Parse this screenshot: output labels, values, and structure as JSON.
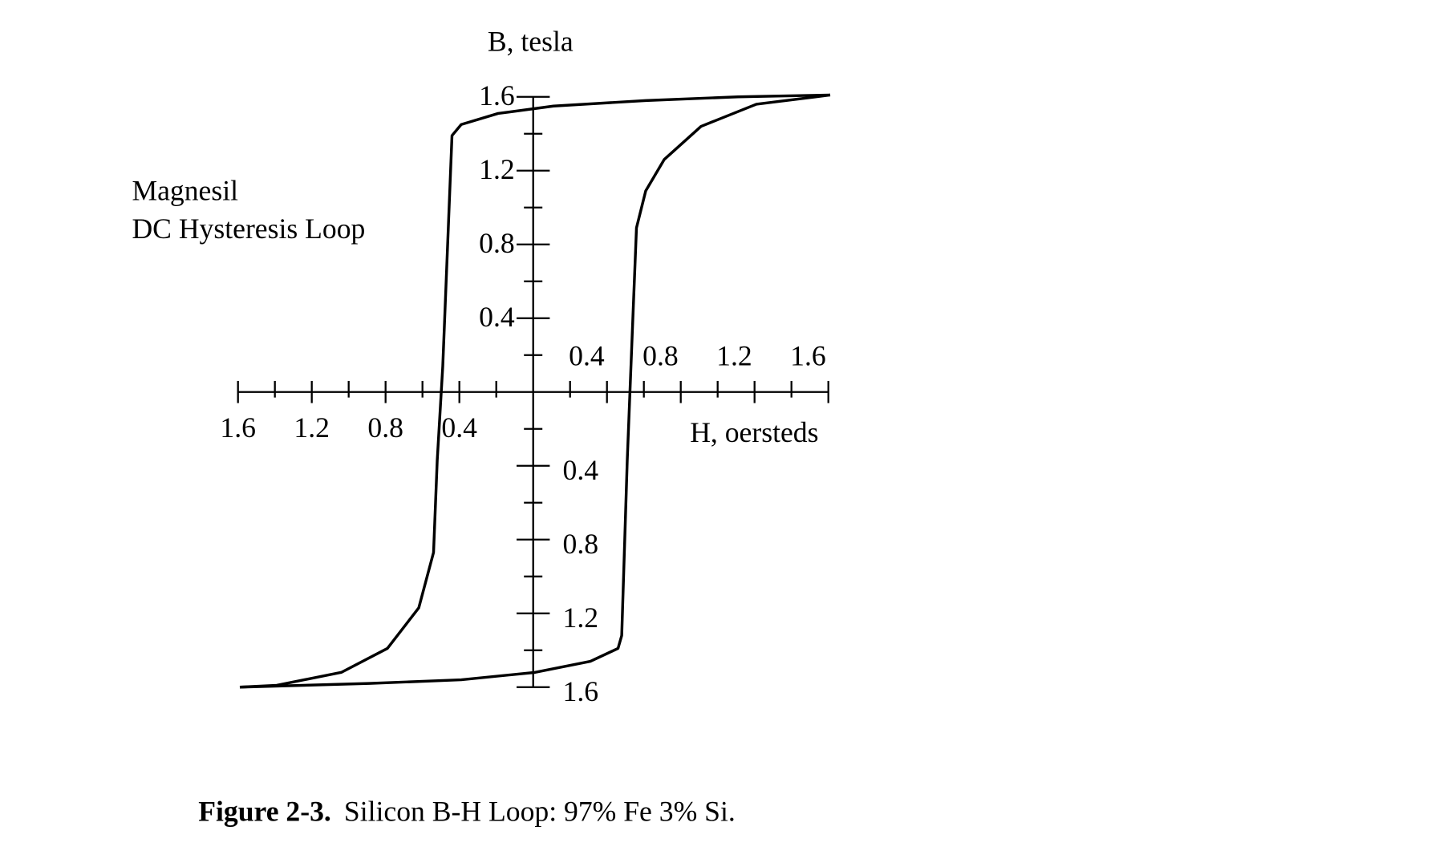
{
  "chart_data": {
    "type": "line",
    "ylabel": "B, tesla",
    "xlabel": "H, oersteds",
    "annotation": [
      "Magnesil",
      "DC Hysteresis Loop"
    ],
    "caption": {
      "label": "Figure 2-3.",
      "text": "Silicon B-H Loop: 97% Fe 3% Si."
    },
    "xlim": [
      -1.6,
      1.6
    ],
    "ylim": [
      -1.6,
      1.6
    ],
    "xticks": [
      {
        "value": -1.6,
        "label": "1.6"
      },
      {
        "value": -1.2,
        "label": "1.2"
      },
      {
        "value": -0.8,
        "label": "0.8"
      },
      {
        "value": -0.4,
        "label": "0.4"
      },
      0.4,
      0.8,
      1.2,
      1.6
    ],
    "yticks": [
      {
        "value": -1.6,
        "label": "1.6"
      },
      {
        "value": -1.2,
        "label": "1.2"
      },
      {
        "value": -0.8,
        "label": "0.8"
      },
      {
        "value": -0.4,
        "label": "0.4"
      },
      0.4,
      0.8,
      1.2,
      1.6
    ],
    "xminorticks": [
      -1.4,
      -1.0,
      -0.6,
      -0.2,
      0.2,
      0.6,
      1.0,
      1.4
    ],
    "yminorticks": [
      -1.4,
      -1.0,
      -0.6,
      -0.2,
      0.2,
      0.6,
      1.0,
      1.4
    ],
    "series": [
      {
        "color": "#000000",
        "x": [
          1.61,
          1.11,
          0.61,
          0.11,
          -0.19,
          -0.39,
          -0.44,
          -0.46,
          -0.49,
          -0.52,
          -0.54,
          -0.62,
          -0.79,
          -1.04,
          -1.39,
          -1.59
        ],
        "values": [
          1.61,
          1.6,
          1.58,
          1.55,
          1.51,
          1.45,
          1.39,
          0.89,
          0.14,
          -0.37,
          -0.87,
          -1.17,
          -1.39,
          -1.52,
          -1.59,
          -1.6
        ]
      },
      {
        "color": "#000000",
        "x": [
          -1.59,
          -0.89,
          -0.39,
          0.01,
          0.31,
          0.46,
          0.48,
          0.51,
          0.54,
          0.56,
          0.61,
          0.71,
          0.91,
          1.21,
          1.61
        ],
        "values": [
          -1.6,
          -1.58,
          -1.56,
          -1.52,
          -1.46,
          -1.39,
          -1.32,
          -0.37,
          0.39,
          0.89,
          1.09,
          1.26,
          1.44,
          1.56,
          1.61
        ]
      }
    ]
  }
}
